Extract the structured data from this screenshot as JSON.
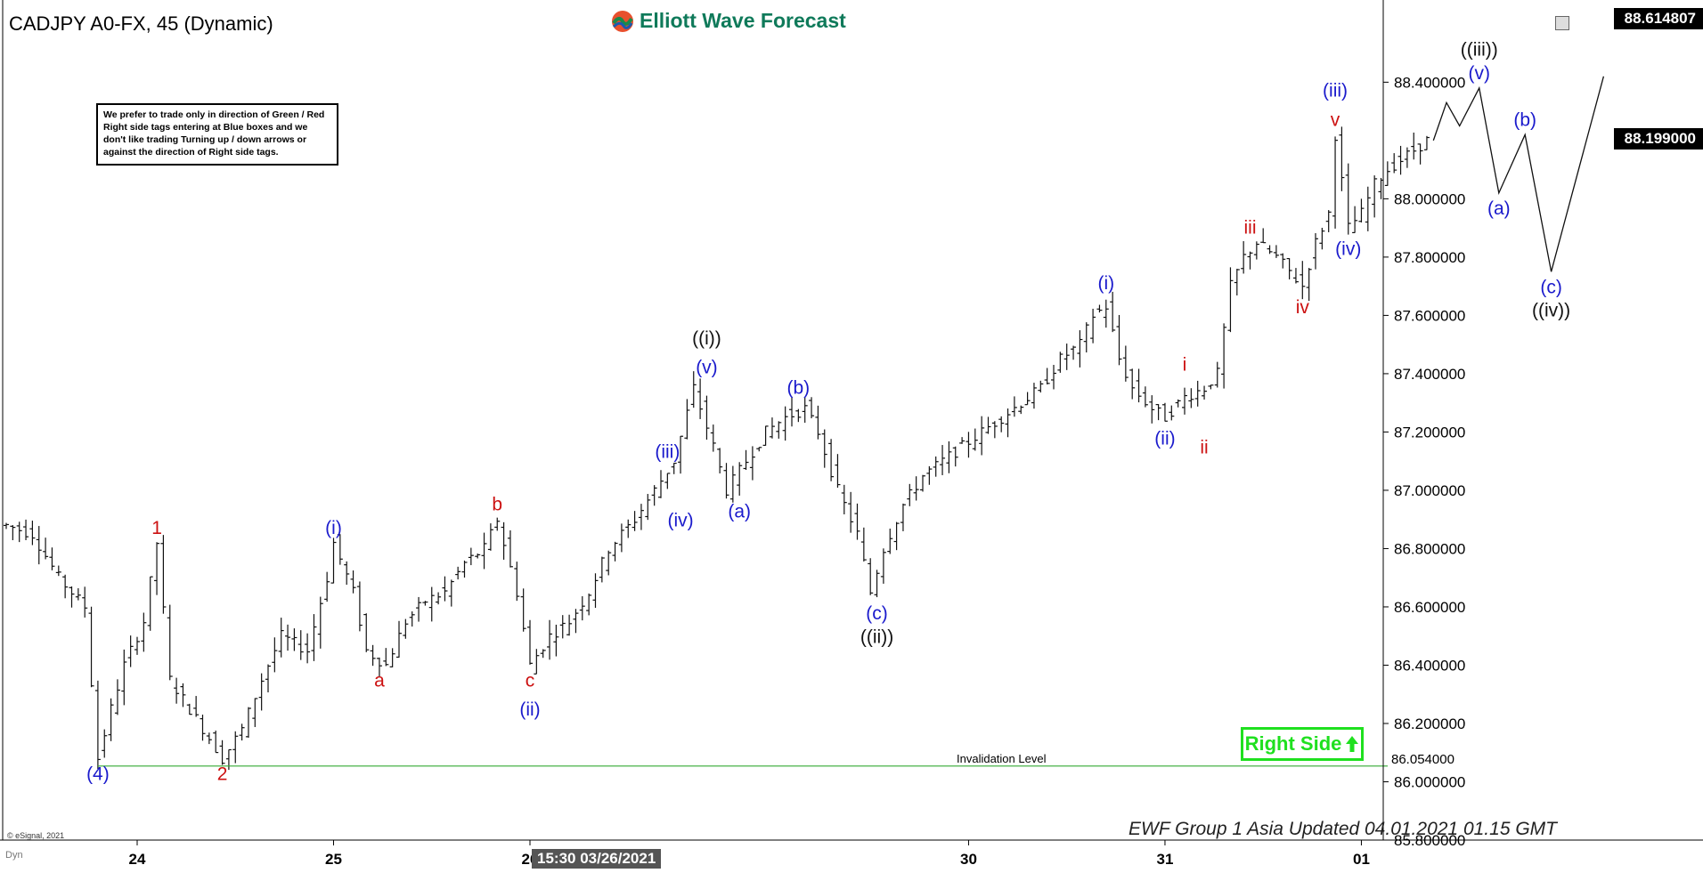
{
  "header": {
    "title": "CADJPY A0-FX, 45 (Dynamic)",
    "logo": "Elliott Wave Forecast"
  },
  "note": "We prefer to trade only in direction of Green / Red Right side tags entering at Blue boxes and we don't like trading Turning up / down arrows or against the direction of Right side tags.",
  "badges": {
    "top_price": "88.614807",
    "current_price": "88.199000",
    "right_side": "Right Side",
    "timestamp": "15:30 03/26/2021"
  },
  "footer": {
    "updated": "EWF Group 1 Asia Updated 04.01.2021 01.15 GMT",
    "copyright": "© eSignal, 2021",
    "dyn": "Dyn"
  },
  "colors": {
    "blue_label": "#1a1acc",
    "red_label": "#cc1111",
    "black_label": "#111111",
    "green": "#1fe01f",
    "invalidation_line": "#33aa33"
  },
  "chart_data": {
    "type": "ohlc",
    "symbol": "CADJPY",
    "ylim": [
      85.8,
      88.614807
    ],
    "y_ticks": [
      "88.400000",
      "88.000000",
      "87.800000",
      "87.600000",
      "87.400000",
      "87.200000",
      "87.000000",
      "86.800000",
      "86.600000",
      "86.400000",
      "86.200000",
      "86.000000",
      "85.800000"
    ],
    "x_ticks": [
      {
        "label": "24",
        "idx": 20
      },
      {
        "label": "25",
        "idx": 50
      },
      {
        "label": "26",
        "idx": 80
      },
      {
        "label": "30",
        "idx": 147
      },
      {
        "label": "31",
        "idx": 177
      },
      {
        "label": "01",
        "idx": 207
      }
    ],
    "price_path": [
      [
        0,
        86.88
      ],
      [
        4,
        86.85
      ],
      [
        8,
        86.7
      ],
      [
        12,
        86.6
      ],
      [
        14,
        86.08
      ],
      [
        16,
        86.25
      ],
      [
        18,
        86.4
      ],
      [
        21,
        86.55
      ],
      [
        23,
        86.82
      ],
      [
        25,
        86.35
      ],
      [
        28,
        86.25
      ],
      [
        31,
        86.15
      ],
      [
        33,
        86.08
      ],
      [
        36,
        86.18
      ],
      [
        39,
        86.35
      ],
      [
        42,
        86.5
      ],
      [
        46,
        86.45
      ],
      [
        49,
        86.7
      ],
      [
        50,
        86.82
      ],
      [
        53,
        86.65
      ],
      [
        55,
        86.45
      ],
      [
        58,
        86.4
      ],
      [
        61,
        86.55
      ],
      [
        64,
        86.62
      ],
      [
        67,
        86.65
      ],
      [
        70,
        86.75
      ],
      [
        73,
        86.8
      ],
      [
        75,
        86.9
      ],
      [
        78,
        86.65
      ],
      [
        80,
        86.4
      ],
      [
        83,
        86.5
      ],
      [
        86,
        86.55
      ],
      [
        89,
        86.65
      ],
      [
        92,
        86.8
      ],
      [
        96,
        86.9
      ],
      [
        99,
        87.0
      ],
      [
        102,
        87.1
      ],
      [
        105,
        87.35
      ],
      [
        108,
        87.15
      ],
      [
        110,
        87.0
      ],
      [
        113,
        87.1
      ],
      [
        116,
        87.2
      ],
      [
        119,
        87.25
      ],
      [
        122,
        87.28
      ],
      [
        124,
        87.2
      ],
      [
        127,
        87.0
      ],
      [
        130,
        86.85
      ],
      [
        132,
        86.65
      ],
      [
        134,
        86.8
      ],
      [
        137,
        86.95
      ],
      [
        140,
        87.05
      ],
      [
        143,
        87.1
      ],
      [
        146,
        87.15
      ],
      [
        149,
        87.2
      ],
      [
        152,
        87.25
      ],
      [
        155,
        87.3
      ],
      [
        158,
        87.35
      ],
      [
        161,
        87.45
      ],
      [
        164,
        87.5
      ],
      [
        166,
        87.6
      ],
      [
        168,
        87.63
      ],
      [
        170,
        87.45
      ],
      [
        172,
        87.35
      ],
      [
        175,
        87.28
      ],
      [
        177,
        87.25
      ],
      [
        180,
        87.32
      ],
      [
        183,
        87.35
      ],
      [
        185,
        87.4
      ],
      [
        187,
        87.7
      ],
      [
        189,
        87.8
      ],
      [
        191,
        87.85
      ],
      [
        194,
        87.8
      ],
      [
        196,
        87.75
      ],
      [
        198,
        87.7
      ],
      [
        200,
        87.85
      ],
      [
        202,
        87.95
      ],
      [
        203,
        88.22
      ],
      [
        205,
        87.9
      ],
      [
        207,
        87.95
      ],
      [
        209,
        88.05
      ],
      [
        211,
        88.1
      ],
      [
        214,
        88.15
      ],
      [
        217,
        88.2
      ]
    ],
    "projection": [
      [
        218,
        88.2
      ],
      [
        220,
        88.33
      ],
      [
        222,
        88.25
      ],
      [
        225,
        88.38
      ],
      [
        228,
        88.02
      ],
      [
        232,
        88.22
      ],
      [
        236,
        87.75
      ],
      [
        244,
        88.42
      ]
    ],
    "invalidation_level": 86.054,
    "invalidation_label": "Invalidation Level",
    "invalidation_value": "86.054000",
    "wave_labels": [
      {
        "text": "(4)",
        "idx": 14,
        "price": 86.08,
        "color": "blue",
        "pos": "below"
      },
      {
        "text": "1",
        "idx": 23,
        "price": 86.82,
        "color": "red",
        "pos": "above"
      },
      {
        "text": "2",
        "idx": 33,
        "price": 86.08,
        "color": "red",
        "pos": "below"
      },
      {
        "text": "(i)",
        "idx": 50,
        "price": 86.82,
        "color": "blue",
        "pos": "above"
      },
      {
        "text": "a",
        "idx": 57,
        "price": 86.4,
        "color": "red",
        "pos": "below"
      },
      {
        "text": "b",
        "idx": 75,
        "price": 86.9,
        "color": "red",
        "pos": "above"
      },
      {
        "text": "c",
        "idx": 80,
        "price": 86.4,
        "color": "red",
        "pos": "below"
      },
      {
        "text": "(ii)",
        "idx": 80,
        "price": 86.3,
        "color": "blue",
        "pos": "below"
      },
      {
        "text": "(iii)",
        "idx": 101,
        "price": 87.08,
        "color": "blue",
        "pos": "above"
      },
      {
        "text": "(iv)",
        "idx": 103,
        "price": 86.95,
        "color": "blue",
        "pos": "below"
      },
      {
        "text": "(v)",
        "idx": 107,
        "price": 87.37,
        "color": "blue",
        "pos": "above"
      },
      {
        "text": "((i))",
        "idx": 107,
        "price": 87.47,
        "color": "black",
        "pos": "above"
      },
      {
        "text": "(a)",
        "idx": 112,
        "price": 86.98,
        "color": "blue",
        "pos": "below"
      },
      {
        "text": "(b)",
        "idx": 121,
        "price": 87.3,
        "color": "blue",
        "pos": "above"
      },
      {
        "text": "(c)",
        "idx": 133,
        "price": 86.63,
        "color": "blue",
        "pos": "below"
      },
      {
        "text": "((ii))",
        "idx": 133,
        "price": 86.55,
        "color": "black",
        "pos": "below"
      },
      {
        "text": "(i)",
        "idx": 168,
        "price": 87.66,
        "color": "blue",
        "pos": "above"
      },
      {
        "text": "(ii)",
        "idx": 177,
        "price": 87.23,
        "color": "blue",
        "pos": "below"
      },
      {
        "text": "i",
        "idx": 180,
        "price": 87.38,
        "color": "red",
        "pos": "above"
      },
      {
        "text": "ii",
        "idx": 183,
        "price": 87.2,
        "color": "red",
        "pos": "below"
      },
      {
        "text": "iii",
        "idx": 190,
        "price": 87.85,
        "color": "red",
        "pos": "above"
      },
      {
        "text": "iv",
        "idx": 198,
        "price": 87.68,
        "color": "red",
        "pos": "below"
      },
      {
        "text": "v",
        "idx": 203,
        "price": 88.22,
        "color": "red",
        "pos": "above"
      },
      {
        "text": "(iii)",
        "idx": 203,
        "price": 88.32,
        "color": "blue",
        "pos": "above"
      },
      {
        "text": "(iv)",
        "idx": 205,
        "price": 87.88,
        "color": "blue",
        "pos": "below"
      },
      {
        "text": "(v)",
        "idx": 225,
        "price": 88.38,
        "color": "blue",
        "pos": "above"
      },
      {
        "text": "((iii))",
        "idx": 225,
        "price": 88.46,
        "color": "black",
        "pos": "above"
      },
      {
        "text": "(a)",
        "idx": 228,
        "price": 88.02,
        "color": "blue",
        "pos": "below"
      },
      {
        "text": "(b)",
        "idx": 232,
        "price": 88.22,
        "color": "blue",
        "pos": "above"
      },
      {
        "text": "(c)",
        "idx": 236,
        "price": 87.75,
        "color": "blue",
        "pos": "below"
      },
      {
        "text": "((iv))",
        "idx": 236,
        "price": 87.67,
        "color": "black",
        "pos": "below"
      }
    ]
  }
}
